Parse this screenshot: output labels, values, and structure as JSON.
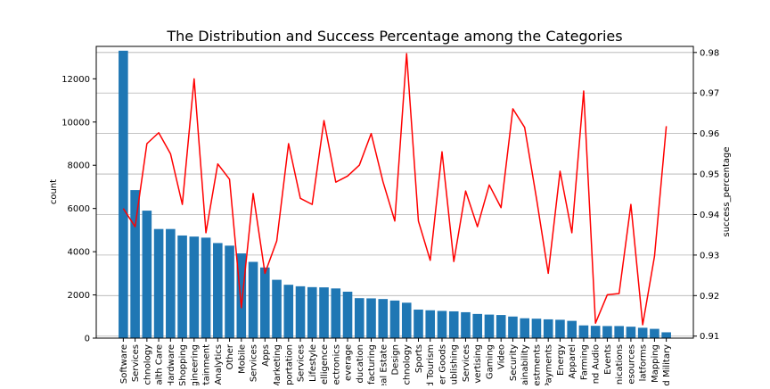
{
  "chart_data": {
    "type": "bar+line",
    "title": "The Distribution and Success Percentage among the Categories",
    "xlabel": "",
    "ylabel_left": "count",
    "ylabel_right": "success_percentage",
    "ylim_left": [
      0,
      13500
    ],
    "ylim_right": [
      0.9095,
      0.9815
    ],
    "yticks_left": [
      0,
      2000,
      4000,
      6000,
      8000,
      10000,
      12000
    ],
    "yticks_right": [
      0.91,
      0.92,
      0.93,
      0.94,
      0.95,
      0.96,
      0.97,
      0.98
    ],
    "grid": "horizontal (right axis)",
    "bar_color": "#1f77b4",
    "line_color": "#ff0000",
    "categories": [
      "Software",
      "Services",
      "chnology",
      "alth Care",
      "Hardware",
      "Shopping",
      "ngineering",
      "rtainment",
      "Analytics",
      "Other",
      "Mobile",
      "Services",
      "Apps",
      "Marketing",
      "portation",
      "Services",
      "Lifestyle",
      "elligence",
      "ectronics",
      "everage",
      "ducation",
      "facturing",
      "eal Estate",
      "Design",
      "chnology",
      "Sports",
      "d Tourism",
      "er Goods",
      "ublishing",
      "Services",
      "vertising",
      "Gaming",
      "Video",
      "Security",
      "ainability",
      "estments",
      "Payments",
      "Energy",
      "Apparel",
      "Farming",
      "nd Audio",
      "Events",
      "nications",
      "esources",
      "latforms",
      "Mapping",
      "d Military"
    ],
    "series": [
      {
        "values": [
          13300,
          6850,
          5900,
          5050,
          5050,
          4750,
          4700,
          4650,
          4400,
          4280,
          3920,
          3530,
          3270,
          2700,
          2470,
          2400,
          2360,
          2350,
          2300,
          2150,
          1850,
          1840,
          1810,
          1740,
          1640,
          1320,
          1290,
          1260,
          1240,
          1200,
          1120,
          1090,
          1070,
          1000,
          920,
          900,
          870,
          850,
          800,
          590,
          570,
          560,
          560,
          530,
          480,
          430,
          270
        ]
      },
      {
        "values": [
          0.9415,
          0.937,
          0.9575,
          0.9602,
          0.955,
          0.9425,
          0.9735,
          0.9355,
          0.9525,
          0.9487,
          0.917,
          0.9452,
          0.9255,
          0.9335,
          0.9575,
          0.944,
          0.9425,
          0.9632,
          0.948,
          0.9495,
          0.9522,
          0.96,
          0.9481,
          0.9384,
          0.9797,
          0.9384,
          0.9287,
          0.9555,
          0.9284,
          0.9458,
          0.937,
          0.9473,
          0.9417,
          0.9661,
          0.9615,
          0.944,
          0.9255,
          0.9507,
          0.9355,
          0.9705,
          0.9132,
          0.9202,
          0.9205,
          0.9425,
          0.9128,
          0.9297,
          0.9618
        ]
      }
    ]
  }
}
